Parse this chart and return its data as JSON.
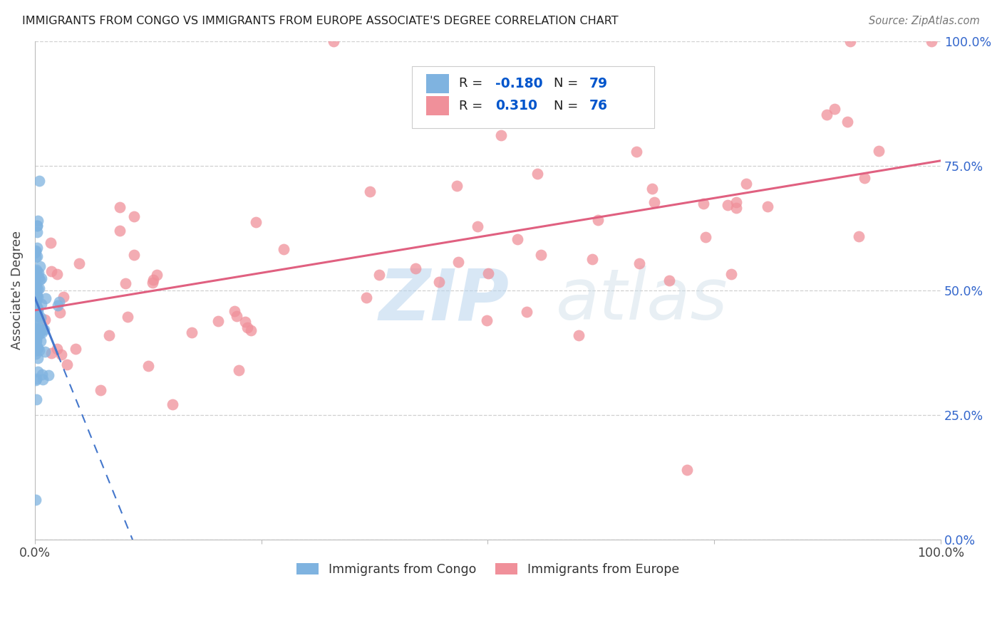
{
  "title": "IMMIGRANTS FROM CONGO VS IMMIGRANTS FROM EUROPE ASSOCIATE'S DEGREE CORRELATION CHART",
  "source": "Source: ZipAtlas.com",
  "ylabel": "Associate's Degree",
  "xlim": [
    0.0,
    1.0
  ],
  "ylim": [
    0.0,
    1.0
  ],
  "ytick_labels": [
    "0.0%",
    "25.0%",
    "50.0%",
    "75.0%",
    "100.0%"
  ],
  "ytick_values": [
    0.0,
    0.25,
    0.5,
    0.75,
    1.0
  ],
  "grid_color": "#d0d0d0",
  "background_color": "#ffffff",
  "color_congo": "#7fb3e0",
  "color_europe": "#f0909a",
  "color_trendline_congo": "#4477cc",
  "color_trendline_europe": "#e06080",
  "color_R_value": "#0055cc",
  "legend_label1": "Immigrants from Congo",
  "legend_label2": "Immigrants from Europe",
  "europe_intercept": 0.46,
  "europe_slope": 0.3,
  "congo_intercept": 0.485,
  "congo_slope": -4.5
}
